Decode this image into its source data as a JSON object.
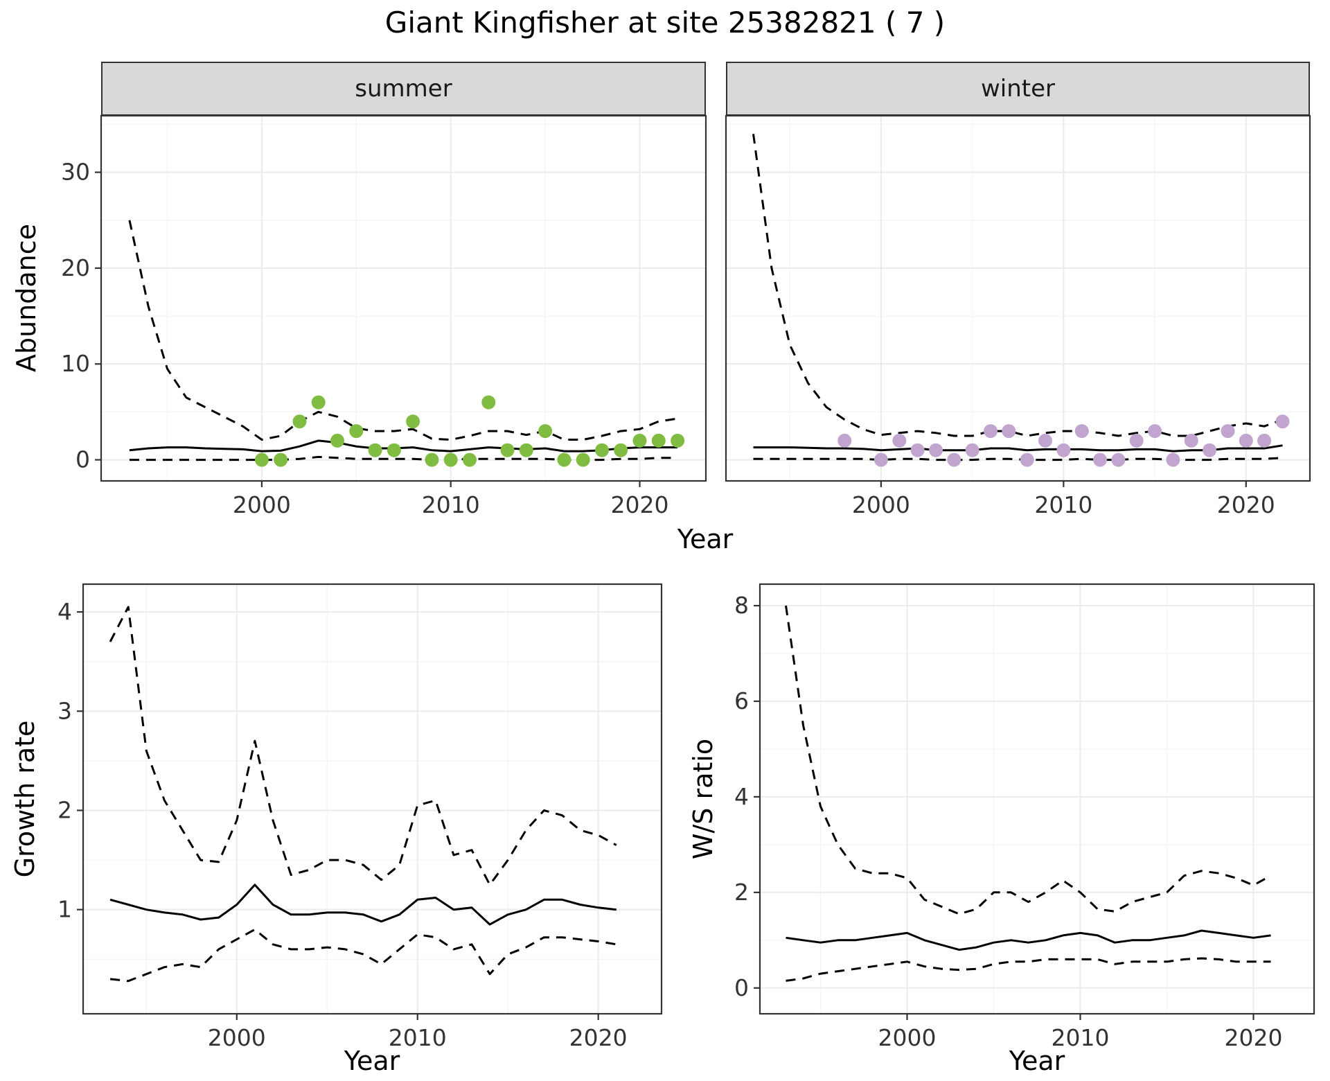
{
  "title": "Giant Kingfisher at site 25382821 ( 7 )",
  "colors": {
    "summer_point": "#7fbc41",
    "winter_point": "#c2a5cf",
    "line": "#000000",
    "strip_bg": "#d9d9d9",
    "panel_border": "#333333",
    "grid_major": "#ebebeb",
    "grid_minor": "#f5f5f5",
    "tick_label": "#333333"
  },
  "labels": {
    "facet_summer": "summer",
    "facet_winter": "winter",
    "top_xlabel": "Year",
    "top_ylabel": "Abundance",
    "growth_xlabel": "Year",
    "growth_ylabel": "Growth rate",
    "ws_xlabel": "Year",
    "ws_ylabel": "W/S ratio"
  },
  "chart_data": [
    {
      "id": "abundance-summer",
      "type": "line",
      "facet": "summer",
      "title": "",
      "xlabel": "Year",
      "ylabel": "Abundance",
      "xlim": [
        1991.5,
        2023.5
      ],
      "ylim": [
        -2.2,
        35.9
      ],
      "xticks": [
        2000,
        2010,
        2020
      ],
      "yticks": [
        0,
        10,
        20,
        30
      ],
      "xticks_minor": [
        1995,
        2005,
        2015
      ],
      "yticks_minor": [
        5,
        15,
        25,
        35
      ],
      "grid": true,
      "legend": "none",
      "x": [
        1993,
        1994,
        1995,
        1996,
        1997,
        1998,
        1999,
        2000,
        2001,
        2002,
        2003,
        2004,
        2005,
        2006,
        2007,
        2008,
        2009,
        2010,
        2011,
        2012,
        2013,
        2014,
        2015,
        2016,
        2017,
        2018,
        2019,
        2020,
        2021,
        2022
      ],
      "series": [
        {
          "name": "upper_95ci",
          "style": "dashed",
          "values": [
            25,
            16,
            9.5,
            6.5,
            5.5,
            4.5,
            3.5,
            2.1,
            2.5,
            4.0,
            5.0,
            4.5,
            3.3,
            3.0,
            3.0,
            3.2,
            2.2,
            2.1,
            2.5,
            3.0,
            3.0,
            2.6,
            3.0,
            2.1,
            2.1,
            2.5,
            3.0,
            3.2,
            4.0,
            4.3
          ]
        },
        {
          "name": "median",
          "style": "solid",
          "values": [
            1.0,
            1.2,
            1.3,
            1.3,
            1.2,
            1.15,
            1.1,
            0.9,
            0.95,
            1.4,
            2.0,
            1.8,
            1.4,
            1.2,
            1.2,
            1.3,
            1.0,
            0.9,
            1.1,
            1.3,
            1.2,
            1.1,
            1.2,
            0.9,
            0.9,
            1.0,
            1.2,
            1.3,
            1.3,
            1.3
          ]
        },
        {
          "name": "lower_95ci",
          "style": "dashed",
          "values": [
            0,
            0,
            0,
            0,
            0,
            0,
            0,
            0,
            0,
            0.1,
            0.3,
            0.2,
            0.1,
            0.1,
            0.1,
            0.1,
            0,
            0,
            0.1,
            0.1,
            0.1,
            0.1,
            0.1,
            0,
            0,
            0,
            0.1,
            0.1,
            0.2,
            0.2
          ]
        }
      ],
      "points": {
        "name": "observed_counts_summer",
        "color_key": "summer_point",
        "x": [
          2000,
          2001,
          2002,
          2003,
          2004,
          2005,
          2006,
          2007,
          2008,
          2009,
          2010,
          2011,
          2012,
          2013,
          2014,
          2015,
          2016,
          2017,
          2018,
          2019,
          2020,
          2021,
          2022
        ],
        "y": [
          0,
          0,
          4,
          6,
          2,
          3,
          1,
          1,
          4,
          0,
          0,
          0,
          6,
          1,
          1,
          3,
          0,
          0,
          1,
          1,
          2,
          2,
          2
        ]
      }
    },
    {
      "id": "abundance-winter",
      "type": "line",
      "facet": "winter",
      "title": "",
      "xlabel": "Year",
      "ylabel": "Abundance",
      "xlim": [
        1991.5,
        2023.5
      ],
      "ylim": [
        -2.2,
        35.9
      ],
      "xticks": [
        2000,
        2010,
        2020
      ],
      "yticks": [
        0,
        10,
        20,
        30
      ],
      "xticks_minor": [
        1995,
        2005,
        2015
      ],
      "yticks_minor": [
        5,
        15,
        25,
        35
      ],
      "grid": true,
      "legend": "none",
      "x": [
        1993,
        1994,
        1995,
        1996,
        1997,
        1998,
        1999,
        2000,
        2001,
        2002,
        2003,
        2004,
        2005,
        2006,
        2007,
        2008,
        2009,
        2010,
        2011,
        2012,
        2013,
        2014,
        2015,
        2016,
        2017,
        2018,
        2019,
        2020,
        2021,
        2022
      ],
      "series": [
        {
          "name": "upper_95ci",
          "style": "dashed",
          "values": [
            34,
            20,
            12,
            8,
            5.5,
            4.2,
            3.2,
            2.6,
            2.8,
            3.0,
            2.8,
            2.5,
            2.5,
            3.0,
            3.0,
            2.5,
            2.8,
            3.0,
            3.0,
            2.8,
            2.5,
            2.8,
            3.0,
            2.5,
            2.5,
            3.0,
            3.5,
            3.8,
            3.5,
            4.2
          ]
        },
        {
          "name": "median",
          "style": "solid",
          "values": [
            1.3,
            1.3,
            1.3,
            1.25,
            1.2,
            1.2,
            1.15,
            1.0,
            1.1,
            1.2,
            1.0,
            1.0,
            1.0,
            1.2,
            1.2,
            1.0,
            1.1,
            1.1,
            1.1,
            1.0,
            1.0,
            1.1,
            1.1,
            0.9,
            1.0,
            1.0,
            1.2,
            1.2,
            1.2,
            1.5
          ]
        },
        {
          "name": "lower_95ci",
          "style": "dashed",
          "values": [
            0.1,
            0.1,
            0.1,
            0.1,
            0.1,
            0.1,
            0.1,
            0,
            0.1,
            0.1,
            0,
            0,
            0,
            0.1,
            0.1,
            0,
            0,
            0,
            0.1,
            0,
            0,
            0.1,
            0.1,
            0,
            0,
            0,
            0.1,
            0.1,
            0.1,
            0.2
          ]
        }
      ],
      "points": {
        "name": "observed_counts_winter",
        "color_key": "winter_point",
        "x": [
          1998,
          2000,
          2001,
          2002,
          2003,
          2004,
          2005,
          2006,
          2007,
          2008,
          2009,
          2010,
          2011,
          2012,
          2013,
          2014,
          2015,
          2016,
          2017,
          2018,
          2019,
          2020,
          2021,
          2022
        ],
        "y": [
          2,
          0,
          2,
          1,
          1,
          0,
          1,
          3,
          3,
          0,
          2,
          1,
          3,
          0,
          0,
          2,
          3,
          0,
          2,
          1,
          3,
          2,
          2,
          4
        ]
      }
    },
    {
      "id": "growth-rate",
      "type": "line",
      "facet": "",
      "title": "",
      "xlabel": "Year",
      "ylabel": "Growth rate",
      "xlim": [
        1991.5,
        2023.5
      ],
      "ylim": [
        -0.05,
        4.28
      ],
      "xticks": [
        2000,
        2010,
        2020
      ],
      "yticks": [
        1,
        2,
        3,
        4
      ],
      "xticks_minor": [
        1995,
        2005,
        2015
      ],
      "yticks_minor": [
        0.5,
        1.5,
        2.5,
        3.5
      ],
      "grid": true,
      "legend": "none",
      "x": [
        1993,
        1994,
        1995,
        1996,
        1997,
        1998,
        1999,
        2000,
        2001,
        2002,
        2003,
        2004,
        2005,
        2006,
        2007,
        2008,
        2009,
        2010,
        2011,
        2012,
        2013,
        2014,
        2015,
        2016,
        2017,
        2018,
        2019,
        2020,
        2021
      ],
      "series": [
        {
          "name": "upper_95ci",
          "style": "dashed",
          "values": [
            3.7,
            4.05,
            2.6,
            2.1,
            1.8,
            1.5,
            1.48,
            1.9,
            2.7,
            1.9,
            1.35,
            1.4,
            1.5,
            1.5,
            1.45,
            1.3,
            1.45,
            2.05,
            2.1,
            1.55,
            1.6,
            1.25,
            1.5,
            1.8,
            2.0,
            1.95,
            1.8,
            1.75,
            1.65
          ]
        },
        {
          "name": "median",
          "style": "solid",
          "values": [
            1.1,
            1.05,
            1.0,
            0.97,
            0.95,
            0.9,
            0.92,
            1.05,
            1.25,
            1.05,
            0.95,
            0.95,
            0.97,
            0.97,
            0.95,
            0.88,
            0.95,
            1.1,
            1.12,
            1.0,
            1.02,
            0.85,
            0.95,
            1.0,
            1.1,
            1.1,
            1.05,
            1.02,
            1.0
          ]
        },
        {
          "name": "lower_95ci",
          "style": "dashed",
          "values": [
            0.3,
            0.28,
            0.35,
            0.42,
            0.45,
            0.42,
            0.6,
            0.7,
            0.8,
            0.65,
            0.6,
            0.6,
            0.62,
            0.6,
            0.55,
            0.45,
            0.6,
            0.75,
            0.72,
            0.6,
            0.65,
            0.35,
            0.55,
            0.62,
            0.72,
            0.72,
            0.7,
            0.68,
            0.65
          ]
        }
      ],
      "points": null
    },
    {
      "id": "ws-ratio",
      "type": "line",
      "facet": "",
      "title": "",
      "xlabel": "Year",
      "ylabel": "W/S ratio",
      "xlim": [
        1991.5,
        2023.5
      ],
      "ylim": [
        -0.54,
        8.45
      ],
      "xticks": [
        2000,
        2010,
        2020
      ],
      "yticks": [
        0,
        2,
        4,
        6,
        8
      ],
      "xticks_minor": [
        1995,
        2005,
        2015
      ],
      "yticks_minor": [
        1,
        3,
        5,
        7
      ],
      "grid": true,
      "legend": "none",
      "x": [
        1993,
        1994,
        1995,
        1996,
        1997,
        1998,
        1999,
        2000,
        2001,
        2002,
        2003,
        2004,
        2005,
        2006,
        2007,
        2008,
        2009,
        2010,
        2011,
        2012,
        2013,
        2014,
        2015,
        2016,
        2017,
        2018,
        2019,
        2020,
        2021
      ],
      "series": [
        {
          "name": "upper_95ci",
          "style": "dashed",
          "values": [
            8.0,
            5.5,
            3.8,
            3.0,
            2.5,
            2.4,
            2.4,
            2.3,
            1.85,
            1.7,
            1.55,
            1.65,
            2.0,
            2.0,
            1.8,
            2.0,
            2.25,
            2.0,
            1.65,
            1.6,
            1.8,
            1.9,
            2.0,
            2.35,
            2.45,
            2.4,
            2.3,
            2.15,
            2.35
          ]
        },
        {
          "name": "median",
          "style": "solid",
          "values": [
            1.05,
            1.0,
            0.95,
            1.0,
            1.0,
            1.05,
            1.1,
            1.15,
            1.0,
            0.9,
            0.8,
            0.85,
            0.95,
            1.0,
            0.95,
            1.0,
            1.1,
            1.15,
            1.1,
            0.95,
            1.0,
            1.0,
            1.05,
            1.1,
            1.2,
            1.15,
            1.1,
            1.05,
            1.1
          ]
        },
        {
          "name": "lower_95ci",
          "style": "dashed",
          "values": [
            0.15,
            0.2,
            0.3,
            0.35,
            0.4,
            0.45,
            0.5,
            0.55,
            0.45,
            0.4,
            0.38,
            0.4,
            0.5,
            0.55,
            0.55,
            0.6,
            0.6,
            0.6,
            0.6,
            0.5,
            0.55,
            0.55,
            0.55,
            0.6,
            0.62,
            0.6,
            0.55,
            0.55,
            0.55
          ]
        }
      ],
      "points": null
    }
  ]
}
